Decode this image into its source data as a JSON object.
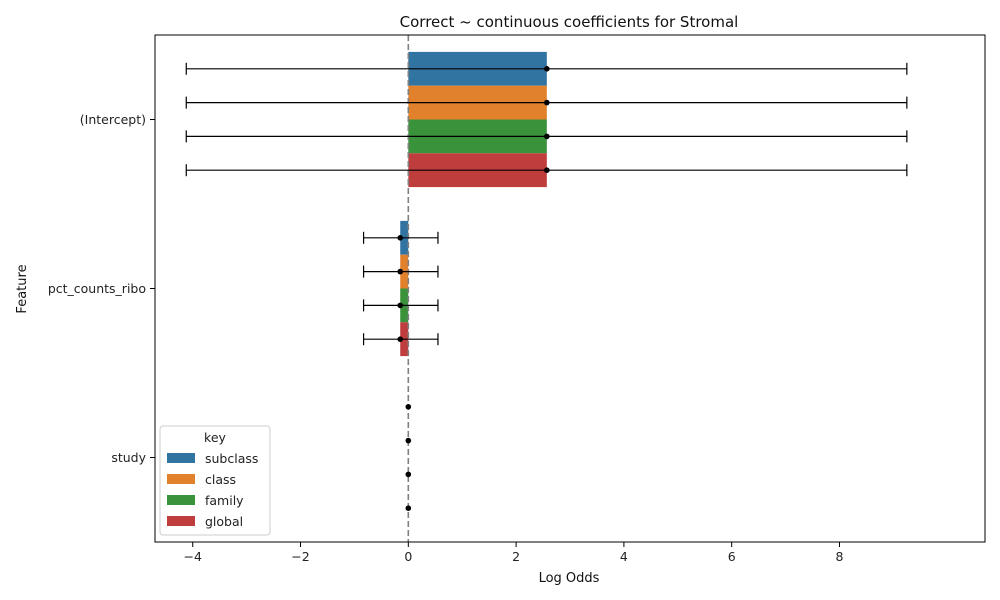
{
  "chart_data": {
    "type": "bar",
    "orientation": "horizontal",
    "title": "Correct ~ continuous coefficients for Stromal",
    "xlabel": "Log Odds",
    "ylabel": "Feature",
    "xlim": [
      -4.7,
      10.7
    ],
    "xticks": [
      -4,
      -2,
      0,
      2,
      4,
      6,
      8
    ],
    "xtick_labels": [
      "−4",
      "−2",
      "0",
      "2",
      "4",
      "6",
      "8"
    ],
    "reference_line_x": 0,
    "categories": [
      "(Intercept)",
      "pct_counts_ribo",
      "study"
    ],
    "legend_title": "key",
    "legend_position": "lower-left",
    "series": [
      {
        "name": "subclass",
        "color": "#3274a1",
        "values": [
          2.57,
          -0.15,
          0.0
        ],
        "ci_low": [
          -4.12,
          -0.83,
          0.0
        ],
        "ci_high": [
          9.25,
          0.55,
          0.0
        ]
      },
      {
        "name": "class",
        "color": "#e1812c",
        "values": [
          2.57,
          -0.15,
          0.0
        ],
        "ci_low": [
          -4.12,
          -0.83,
          0.0
        ],
        "ci_high": [
          9.25,
          0.55,
          0.0
        ]
      },
      {
        "name": "family",
        "color": "#3a923a",
        "values": [
          2.57,
          -0.15,
          0.0
        ],
        "ci_low": [
          -4.12,
          -0.83,
          0.0
        ],
        "ci_high": [
          9.25,
          0.55,
          0.0
        ]
      },
      {
        "name": "global",
        "color": "#c03d3e",
        "values": [
          2.57,
          -0.15,
          0.0
        ],
        "ci_low": [
          -4.12,
          -0.83,
          0.0
        ],
        "ci_high": [
          9.25,
          0.55,
          0.0
        ]
      }
    ]
  }
}
